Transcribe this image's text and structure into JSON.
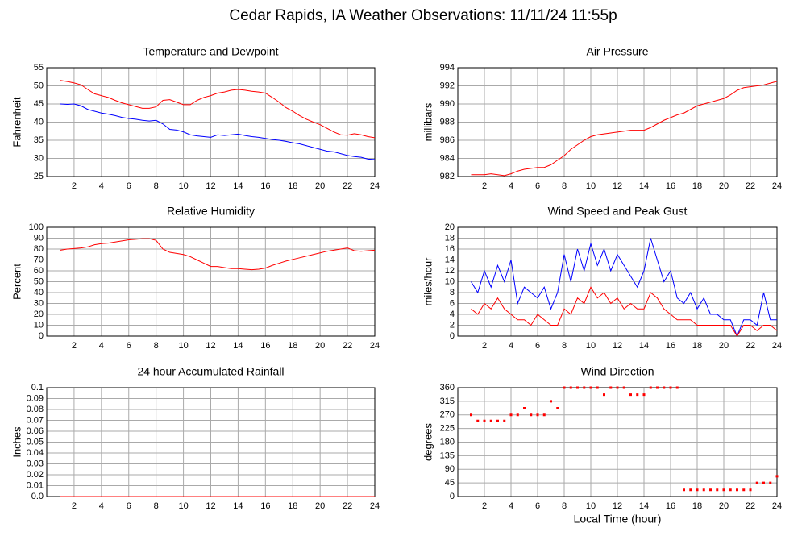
{
  "title": "Cedar Rapids, IA Weather Observations: 11/11/24 11:55p",
  "chart_data": [
    {
      "type": "line",
      "title": "Temperature and Dewpoint",
      "ylabel": "Fahrenheit",
      "x": [
        1,
        1.5,
        2,
        2.5,
        3,
        3.5,
        4,
        4.5,
        5,
        5.5,
        6,
        6.5,
        7,
        7.5,
        8,
        8.5,
        9,
        9.5,
        10,
        10.5,
        11,
        11.5,
        12,
        12.5,
        13,
        13.5,
        14,
        14.5,
        15,
        15.5,
        16,
        16.5,
        17,
        17.5,
        18,
        18.5,
        19,
        19.5,
        20,
        20.5,
        21,
        21.5,
        22,
        22.5,
        23,
        23.5,
        24
      ],
      "series": [
        {
          "color": "#ff0000",
          "values": [
            51.5,
            51.2,
            50.8,
            50.3,
            49,
            47.8,
            47.3,
            46.8,
            46,
            45.3,
            44.8,
            44.3,
            43.8,
            43.8,
            44.2,
            46,
            46.2,
            45.5,
            44.8,
            44.8,
            46,
            46.8,
            47.3,
            48,
            48.3,
            48.8,
            49,
            48.8,
            48.5,
            48.3,
            48,
            46.8,
            45.5,
            44,
            43,
            41.8,
            40.8,
            40,
            39.3,
            38.3,
            37.3,
            36.5,
            36.4,
            36.8,
            36.5,
            36,
            35.7
          ]
        },
        {
          "color": "#0000ff",
          "values": [
            45,
            44.9,
            45,
            44.5,
            43.5,
            43,
            42.5,
            42.2,
            41.8,
            41.3,
            41,
            40.8,
            40.5,
            40.3,
            40.5,
            39.5,
            38,
            37.8,
            37.3,
            36.5,
            36.2,
            36,
            35.8,
            36.5,
            36.3,
            36.5,
            36.7,
            36.3,
            36,
            35.8,
            35.5,
            35.2,
            35,
            34.7,
            34.3,
            34,
            33.5,
            33,
            32.5,
            32,
            31.8,
            31.3,
            30.8,
            30.5,
            30.3,
            29.8,
            29.7
          ]
        }
      ],
      "xlim": [
        0,
        24
      ],
      "xticks": [
        2,
        4,
        6,
        8,
        10,
        12,
        14,
        16,
        18,
        20,
        22,
        24
      ],
      "ylim": [
        25,
        55
      ],
      "yticks": [
        25,
        30,
        35,
        40,
        45,
        50,
        55
      ],
      "grid": true
    },
    {
      "type": "line",
      "title": "Air Pressure",
      "ylabel": "millibars",
      "x": [
        1,
        1.5,
        2,
        2.5,
        3,
        3.5,
        4,
        4.5,
        5,
        5.5,
        6,
        6.5,
        7,
        7.5,
        8,
        8.5,
        9,
        9.5,
        10,
        10.5,
        11,
        11.5,
        12,
        12.5,
        13,
        13.5,
        14,
        14.5,
        15,
        15.5,
        16,
        16.5,
        17,
        17.5,
        18,
        18.5,
        19,
        19.5,
        20,
        20.5,
        21,
        21.5,
        22,
        22.5,
        23,
        23.5,
        24
      ],
      "series": [
        {
          "color": "#ff0000",
          "values": [
            982.2,
            982.2,
            982.2,
            982.3,
            982.2,
            982.1,
            982.3,
            982.6,
            982.8,
            982.9,
            983,
            983,
            983.3,
            983.8,
            984.3,
            985,
            985.5,
            986,
            986.4,
            986.6,
            986.7,
            986.8,
            986.9,
            987,
            987.1,
            987.1,
            987.1,
            987.4,
            987.8,
            988.2,
            988.5,
            988.8,
            989,
            989.4,
            989.8,
            990,
            990.2,
            990.4,
            990.6,
            991,
            991.5,
            991.8,
            991.9,
            992,
            992.1,
            992.3,
            992.5
          ]
        }
      ],
      "xlim": [
        0,
        24
      ],
      "xticks": [
        2,
        4,
        6,
        8,
        10,
        12,
        14,
        16,
        18,
        20,
        22,
        24
      ],
      "ylim": [
        982,
        994
      ],
      "yticks": [
        982,
        984,
        986,
        988,
        990,
        992,
        994
      ],
      "grid": true
    },
    {
      "type": "line",
      "title": "Relative Humidity",
      "ylabel": "Percent",
      "x": [
        1,
        1.5,
        2,
        2.5,
        3,
        3.5,
        4,
        4.5,
        5,
        5.5,
        6,
        6.5,
        7,
        7.5,
        8,
        8.5,
        9,
        9.5,
        10,
        10.5,
        11,
        11.5,
        12,
        12.5,
        13,
        13.5,
        14,
        14.5,
        15,
        15.5,
        16,
        16.5,
        17,
        17.5,
        18,
        18.5,
        19,
        19.5,
        20,
        20.5,
        21,
        21.5,
        22,
        22.5,
        23,
        23.5,
        24
      ],
      "series": [
        {
          "color": "#ff0000",
          "values": [
            79,
            80,
            80.5,
            81,
            82,
            84,
            85,
            85.5,
            86.5,
            87.5,
            88.5,
            89,
            89.5,
            89.5,
            88,
            80,
            77,
            76,
            75,
            73,
            70,
            67,
            64,
            64,
            63,
            62,
            62,
            61.5,
            61,
            61.5,
            62.5,
            65,
            67,
            69,
            70.5,
            72,
            73.5,
            75,
            76.5,
            78,
            79,
            80,
            81,
            78.5,
            78,
            78.5,
            79
          ]
        }
      ],
      "xlim": [
        0,
        24
      ],
      "xticks": [
        2,
        4,
        6,
        8,
        10,
        12,
        14,
        16,
        18,
        20,
        22,
        24
      ],
      "ylim": [
        0,
        100
      ],
      "yticks": [
        0,
        10,
        20,
        30,
        40,
        50,
        60,
        70,
        80,
        90,
        100
      ],
      "grid": true
    },
    {
      "type": "line",
      "title": "Wind Speed and Peak Gust",
      "ylabel": "miles/hour",
      "x": [
        1,
        1.5,
        2,
        2.5,
        3,
        3.5,
        4,
        4.5,
        5,
        5.5,
        6,
        6.5,
        7,
        7.5,
        8,
        8.5,
        9,
        9.5,
        10,
        10.5,
        11,
        11.5,
        12,
        12.5,
        13,
        13.5,
        14,
        14.5,
        15,
        15.5,
        16,
        16.5,
        17,
        17.5,
        18,
        18.5,
        19,
        19.5,
        20,
        20.5,
        21,
        21.5,
        22,
        22.5,
        23,
        23.5,
        24
      ],
      "series": [
        {
          "color": "#0000ff",
          "values": [
            10,
            8,
            12,
            9,
            13,
            10,
            14,
            6,
            9,
            8,
            7,
            9,
            5,
            8,
            15,
            10,
            16,
            12,
            17,
            13,
            16,
            12,
            15,
            13,
            11,
            9,
            12,
            18,
            14,
            10,
            12,
            7,
            6,
            8,
            5,
            7,
            4,
            4,
            3,
            3,
            0,
            3,
            3,
            2,
            8,
            3,
            3
          ]
        },
        {
          "color": "#ff0000",
          "values": [
            5,
            4,
            6,
            5,
            7,
            5,
            4,
            3,
            3,
            2,
            4,
            3,
            2,
            2,
            5,
            4,
            7,
            6,
            9,
            7,
            8,
            6,
            7,
            5,
            6,
            5,
            5,
            8,
            7,
            5,
            4,
            3,
            3,
            3,
            2,
            2,
            2,
            2,
            2,
            2,
            0,
            2,
            2,
            1,
            2,
            2,
            1
          ]
        }
      ],
      "xlim": [
        0,
        24
      ],
      "xticks": [
        2,
        4,
        6,
        8,
        10,
        12,
        14,
        16,
        18,
        20,
        22,
        24
      ],
      "ylim": [
        0,
        20
      ],
      "yticks": [
        0,
        2,
        4,
        6,
        8,
        10,
        12,
        14,
        16,
        18,
        20
      ],
      "grid": true
    },
    {
      "type": "line",
      "title": "24 hour Accumulated Rainfall",
      "ylabel": "Inches",
      "x": [
        1,
        24
      ],
      "series": [
        {
          "color": "#ff0000",
          "values": [
            0,
            0
          ]
        }
      ],
      "xlim": [
        0,
        24
      ],
      "xticks": [
        2,
        4,
        6,
        8,
        10,
        12,
        14,
        16,
        18,
        20,
        22,
        24
      ],
      "ylim": [
        0,
        0.1
      ],
      "yticks": [
        {
          "value": 0,
          "label": "0.0"
        },
        0.01,
        0.02,
        0.03,
        0.04,
        0.05,
        0.06,
        0.07,
        0.08,
        0.09,
        0.1
      ],
      "grid": true
    },
    {
      "type": "scatter",
      "title": "Wind Direction",
      "ylabel": "degrees",
      "xlabel": "Local Time (hour)",
      "color": "#ff0000",
      "x": [
        1,
        1.5,
        2,
        2.5,
        3,
        3.5,
        4,
        4.5,
        5,
        5.5,
        6,
        6.5,
        7,
        7.5,
        8,
        8.5,
        9,
        9.5,
        10,
        10.5,
        11,
        11.5,
        12,
        12.5,
        13,
        13.5,
        14,
        14.5,
        15,
        15.5,
        16,
        16.5,
        17,
        17.5,
        18,
        18.5,
        19,
        19.5,
        20,
        20.5,
        21,
        21.5,
        22,
        22.5,
        23,
        23.5,
        24
      ],
      "values": [
        270,
        250,
        250,
        250,
        250,
        250,
        270,
        270,
        292,
        270,
        270,
        270,
        315,
        292,
        360,
        360,
        360,
        360,
        360,
        360,
        337,
        360,
        360,
        360,
        337,
        337,
        337,
        360,
        360,
        360,
        360,
        360,
        22,
        22,
        22,
        22,
        22,
        22,
        22,
        22,
        22,
        22,
        22,
        45,
        45,
        45,
        67
      ],
      "xlim": [
        0,
        24
      ],
      "xticks": [
        2,
        4,
        6,
        8,
        10,
        12,
        14,
        16,
        18,
        20,
        22,
        24
      ],
      "ylim": [
        0,
        360
      ],
      "yticks": [
        0,
        45,
        90,
        135,
        180,
        225,
        270,
        315,
        360
      ],
      "grid": true
    }
  ]
}
